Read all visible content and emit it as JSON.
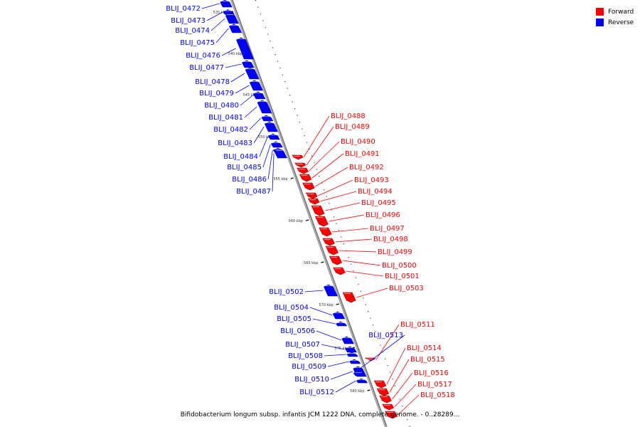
{
  "caption": "Bifidobacterium longum subsp. infantis JCM 1222 DNA, complete genome. - 0..28289...",
  "legend": [
    {
      "label": "Forward",
      "color": "#ff0000"
    },
    {
      "label": "Reverse",
      "color": "#0000ff"
    }
  ],
  "colors": {
    "forward": "#ff0000",
    "reverse": "#0000ff",
    "forward_dark": "#a00000",
    "reverse_dark": "#00009a"
  },
  "kbp_ticks": [
    "535 kbp",
    "540 kbp",
    "545 kbp",
    "550 kbp",
    "555 kbp",
    "560 kbp",
    "565 kbp",
    "570 kbp",
    "575 kbp",
    "580 kbp"
  ],
  "genes": [
    {
      "name": "BLIJ_0472",
      "strand": "reverse"
    },
    {
      "name": "BLIJ_0473",
      "strand": "reverse"
    },
    {
      "name": "BLIJ_0474",
      "strand": "reverse"
    },
    {
      "name": "BLIJ_0475",
      "strand": "reverse"
    },
    {
      "name": "BLIJ_0476",
      "strand": "reverse"
    },
    {
      "name": "BLIJ_0477",
      "strand": "reverse"
    },
    {
      "name": "BLIJ_0478",
      "strand": "reverse"
    },
    {
      "name": "BLIJ_0479",
      "strand": "reverse"
    },
    {
      "name": "BLIJ_0480",
      "strand": "reverse"
    },
    {
      "name": "BLIJ_0481",
      "strand": "reverse"
    },
    {
      "name": "BLIJ_0482",
      "strand": "reverse"
    },
    {
      "name": "BLIJ_0483",
      "strand": "reverse"
    },
    {
      "name": "BLIJ_0484",
      "strand": "reverse"
    },
    {
      "name": "BLIJ_0485",
      "strand": "reverse"
    },
    {
      "name": "BLIJ_0486",
      "strand": "reverse"
    },
    {
      "name": "BLIJ_0487",
      "strand": "reverse"
    },
    {
      "name": "BLIJ_0488",
      "strand": "forward"
    },
    {
      "name": "BLIJ_0489",
      "strand": "forward"
    },
    {
      "name": "BLIJ_0490",
      "strand": "forward"
    },
    {
      "name": "BLIJ_0491",
      "strand": "forward"
    },
    {
      "name": "BLIJ_0492",
      "strand": "forward"
    },
    {
      "name": "BLIJ_0493",
      "strand": "forward"
    },
    {
      "name": "BLIJ_0494",
      "strand": "forward"
    },
    {
      "name": "BLIJ_0495",
      "strand": "forward"
    },
    {
      "name": "BLIJ_0496",
      "strand": "forward"
    },
    {
      "name": "BLIJ_0497",
      "strand": "forward"
    },
    {
      "name": "BLIJ_0498",
      "strand": "forward"
    },
    {
      "name": "BLIJ_0499",
      "strand": "forward"
    },
    {
      "name": "BLIJ_0500",
      "strand": "forward"
    },
    {
      "name": "BLIJ_0501",
      "strand": "forward"
    },
    {
      "name": "BLIJ_0502",
      "strand": "reverse"
    },
    {
      "name": "BLIJ_0503",
      "strand": "forward"
    },
    {
      "name": "BLIJ_0504",
      "strand": "reverse"
    },
    {
      "name": "BLIJ_0505",
      "strand": "reverse"
    },
    {
      "name": "BLIJ_0506",
      "strand": "reverse"
    },
    {
      "name": "BLIJ_0507",
      "strand": "reverse"
    },
    {
      "name": "BLIJ_0508",
      "strand": "reverse"
    },
    {
      "name": "BLIJ_0509",
      "strand": "reverse"
    },
    {
      "name": "BLIJ_0510",
      "strand": "reverse"
    },
    {
      "name": "BLIJ_0511",
      "strand": "forward"
    },
    {
      "name": "BLIJ_0512",
      "strand": "reverse"
    },
    {
      "name": "BLIJ_0513",
      "strand": "reverse"
    },
    {
      "name": "BLIJ_0514",
      "strand": "forward"
    },
    {
      "name": "BLIJ_0515",
      "strand": "forward"
    },
    {
      "name": "BLIJ_0516",
      "strand": "forward"
    },
    {
      "name": "BLIJ_0517",
      "strand": "forward"
    },
    {
      "name": "BLIJ_0518",
      "strand": "forward"
    }
  ]
}
